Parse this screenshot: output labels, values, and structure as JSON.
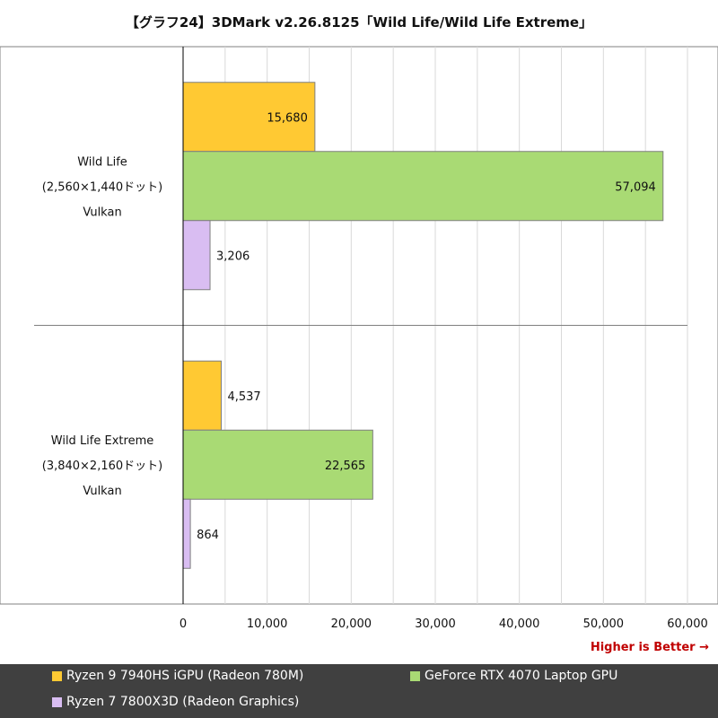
{
  "title": "【グラフ24】3DMark v2.26.8125「Wild Life/Wild Life Extreme」",
  "higher_is_better": "Higher is Better →",
  "legend": {
    "items": [
      {
        "label": "Ryzen 9 7940HS iGPU (Radeon 780M)",
        "color": "#ffc933"
      },
      {
        "label": "GeForce RTX 4070 Laptop GPU",
        "color": "#a9da74"
      },
      {
        "label": "Ryzen 7 7800X3D (Radeon Graphics)",
        "color": "#d9bdf2"
      }
    ]
  },
  "chart_data": {
    "type": "bar",
    "orientation": "horizontal",
    "title": "【グラフ24】3DMark v2.26.8125「Wild Life/Wild Life Extreme」",
    "categories": [
      {
        "lines": [
          "Wild Life",
          "(2,560×1,440ドット)",
          "Vulkan"
        ]
      },
      {
        "lines": [
          "Wild Life Extreme",
          "(3,840×2,160ドット)",
          "Vulkan"
        ]
      }
    ],
    "series": [
      {
        "name": "Ryzen 9 7940HS iGPU (Radeon 780M)",
        "color": "#ffc933",
        "values": [
          15680,
          4537
        ],
        "labels": [
          "15,680",
          "4,537"
        ]
      },
      {
        "name": "GeForce RTX 4070 Laptop GPU",
        "color": "#a9da74",
        "values": [
          57094,
          22565
        ],
        "labels": [
          "57,094",
          "22,565"
        ]
      },
      {
        "name": "Ryzen 7 7800X3D (Radeon Graphics)",
        "color": "#d9bdf2",
        "values": [
          3206,
          864
        ],
        "labels": [
          "3,206",
          "864"
        ]
      }
    ],
    "xlim": [
      0,
      60000
    ],
    "ticks": [
      0,
      10000,
      20000,
      30000,
      40000,
      50000,
      60000
    ],
    "tick_labels": [
      "0",
      "10,000",
      "20,000",
      "30,000",
      "40,000",
      "50,000",
      "60,000"
    ],
    "grid": true,
    "legend_position": "bottom"
  }
}
